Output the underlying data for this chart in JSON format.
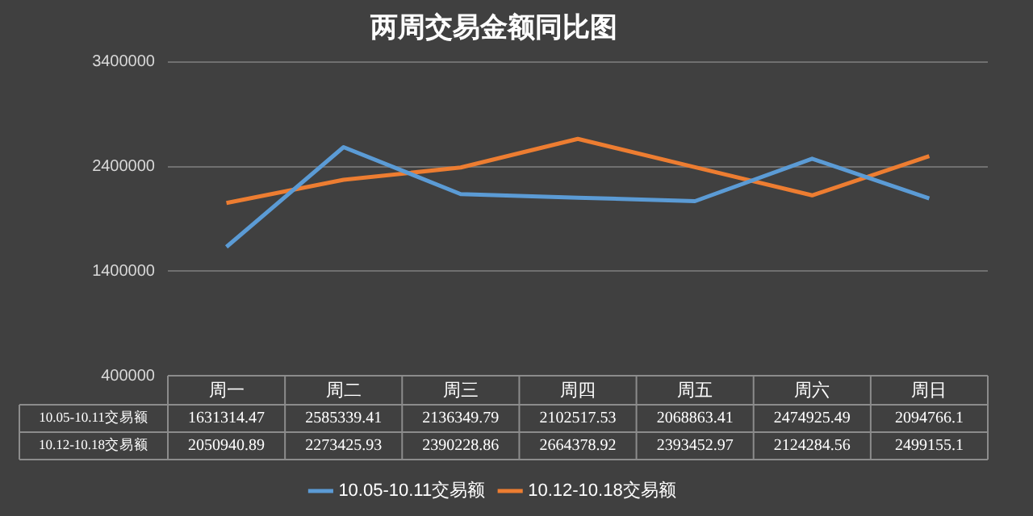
{
  "chart_data": {
    "type": "line",
    "title": "两周交易金额同比图",
    "categories": [
      "周一",
      "周二",
      "周三",
      "周四",
      "周五",
      "周六",
      "周日"
    ],
    "series": [
      {
        "name": "10.05-10.11交易额",
        "color": "#5b9bd5",
        "values": [
          1631314.47,
          2585339.41,
          2136349.79,
          2102517.53,
          2068863.41,
          2474925.49,
          2094766.1
        ]
      },
      {
        "name": "10.12-10.18交易额",
        "color": "#ed7d31",
        "values": [
          2050940.89,
          2273425.93,
          2390228.86,
          2664378.92,
          2393452.97,
          2124284.56,
          2499155.1
        ]
      }
    ],
    "ylim": [
      400000,
      3400000
    ],
    "yticks": [
      400000,
      1400000,
      2400000,
      3400000
    ],
    "grid": "y",
    "legend": "bottom",
    "marker": "none",
    "line_style": "solid",
    "data_labels": true
  }
}
